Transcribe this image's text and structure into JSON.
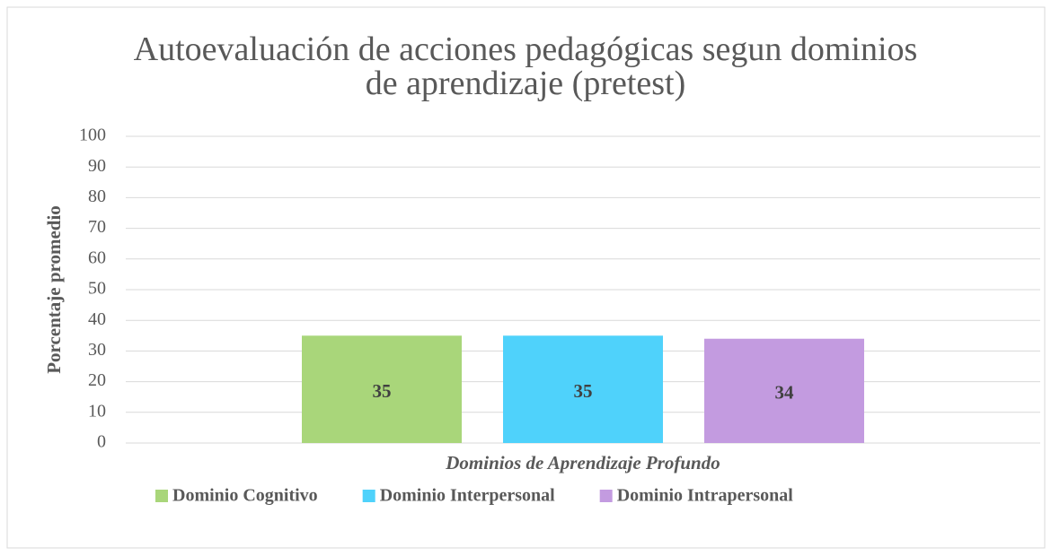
{
  "chart_data": {
    "type": "bar",
    "title": "Autoevaluación de acciones pedagógicas segun dominios de aprendizaje (pretest)",
    "y_label": "Porcentaje promedio",
    "x_label": "Dominios de Aprendizaje Profundo",
    "categories": [
      null
    ],
    "series": [
      {
        "name": "Dominio Cognitivo",
        "color": "#a9d67a",
        "values": [
          35
        ]
      },
      {
        "name": "Dominio Interpersonal",
        "color": "#4fd2fb",
        "values": [
          35
        ]
      },
      {
        "name": "Dominio Intrapersonal",
        "color": "#c39be0",
        "values": [
          34
        ]
      }
    ],
    "ylim": [
      0,
      100
    ],
    "yticks": [
      0,
      10,
      20,
      30,
      40,
      50,
      60,
      70,
      80,
      90,
      100
    ],
    "grid": true,
    "legend": "bottom"
  }
}
